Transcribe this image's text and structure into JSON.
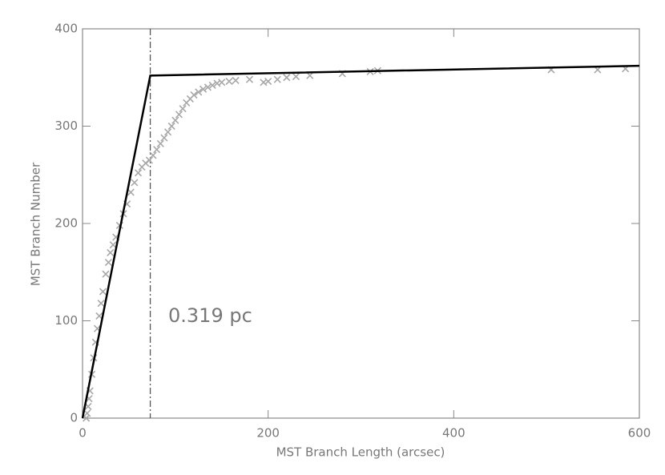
{
  "chart_data": {
    "type": "scatter",
    "xlabel": "MST Branch Length (arcsec)",
    "ylabel": "MST Branch Number",
    "annotation": "0.319 pc",
    "x": [
      4,
      5,
      6,
      7,
      8,
      10,
      12,
      14,
      16,
      18,
      20,
      22,
      25,
      28,
      30,
      33,
      36,
      40,
      44,
      48,
      52,
      56,
      60,
      64,
      68,
      72,
      76,
      80,
      84,
      88,
      92,
      96,
      100,
      104,
      108,
      112,
      116,
      120,
      125,
      130,
      135,
      140,
      145,
      150,
      158,
      165,
      180,
      195,
      200,
      210,
      220,
      230,
      245,
      280,
      310,
      318,
      505,
      555,
      585
    ],
    "values": [
      0,
      5,
      12,
      20,
      28,
      45,
      62,
      78,
      92,
      105,
      118,
      130,
      148,
      160,
      170,
      178,
      186,
      198,
      210,
      220,
      232,
      242,
      252,
      258,
      262,
      265,
      270,
      276,
      282,
      288,
      294,
      300,
      306,
      312,
      318,
      324,
      328,
      332,
      335,
      338,
      340,
      342,
      344,
      345,
      346,
      347,
      348,
      345,
      346,
      348,
      350,
      351,
      352,
      354,
      356,
      357,
      358,
      358,
      359
    ],
    "color": "#a8a8a8",
    "fit": {
      "x": [
        0,
        73,
        600
      ],
      "values": [
        0,
        352,
        362
      ],
      "color": "#000000"
    },
    "break_x": 73,
    "xlim": [
      0,
      600
    ],
    "ylim": [
      0,
      400
    ],
    "xticks": [
      0,
      200,
      400,
      600
    ],
    "yticks": [
      0,
      100,
      200,
      300,
      400
    ]
  }
}
